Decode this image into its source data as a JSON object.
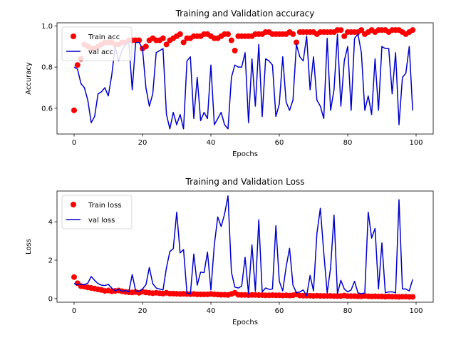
{
  "chart_data": [
    {
      "type": "scatter+line",
      "title": "Training and Validation accuracy",
      "xlabel": "Epochs",
      "ylabel": "Accuracy",
      "xlim": [
        -5,
        105
      ],
      "ylim": [
        0.475,
        1.015
      ],
      "xticks": [
        0,
        20,
        40,
        60,
        80,
        100
      ],
      "yticks": [
        0.6,
        0.8,
        1.0
      ],
      "ytick_labels": [
        "0.6",
        "0.8",
        "1.0"
      ],
      "legend": {
        "placement": "upper-left"
      },
      "series": [
        {
          "name": "Train acc",
          "kind": "scatter",
          "color": "#ff0000",
          "values": [
            0.59,
            0.81,
            0.84,
            0.91,
            0.9,
            0.89,
            0.89,
            0.9,
            0.91,
            0.92,
            0.92,
            0.92,
            0.91,
            0.91,
            0.92,
            0.92,
            0.93,
            0.93,
            0.93,
            0.93,
            0.89,
            0.9,
            0.93,
            0.94,
            0.93,
            0.93,
            0.94,
            0.91,
            0.93,
            0.94,
            0.95,
            0.96,
            0.92,
            0.94,
            0.94,
            0.95,
            0.95,
            0.95,
            0.96,
            0.96,
            0.95,
            0.94,
            0.94,
            0.95,
            0.96,
            0.96,
            0.93,
            0.88,
            0.95,
            0.95,
            0.95,
            0.95,
            0.95,
            0.96,
            0.96,
            0.96,
            0.97,
            0.97,
            0.96,
            0.96,
            0.96,
            0.96,
            0.96,
            0.97,
            0.96,
            0.92,
            0.97,
            0.97,
            0.97,
            0.97,
            0.97,
            0.96,
            0.97,
            0.97,
            0.97,
            0.97,
            0.97,
            0.98,
            0.98,
            0.95,
            0.97,
            0.97,
            0.97,
            0.97,
            0.98,
            0.96,
            0.97,
            0.98,
            0.97,
            0.98,
            0.98,
            0.98,
            0.97,
            0.98,
            0.98,
            0.98,
            0.97,
            0.96,
            0.97,
            0.98
          ]
        },
        {
          "name": "val acc",
          "kind": "line",
          "color": "#0000cc",
          "values": [
            0.8,
            0.79,
            0.72,
            0.7,
            0.64,
            0.53,
            0.56,
            0.67,
            0.68,
            0.7,
            0.66,
            0.76,
            0.9,
            0.83,
            0.88,
            0.91,
            0.92,
            0.69,
            0.92,
            0.92,
            0.89,
            0.7,
            0.61,
            0.67,
            0.87,
            0.88,
            0.89,
            0.57,
            0.5,
            0.58,
            0.52,
            0.57,
            0.5,
            0.83,
            0.85,
            0.55,
            0.75,
            0.54,
            0.58,
            0.55,
            0.81,
            0.52,
            0.55,
            0.58,
            0.52,
            0.5,
            0.75,
            0.81,
            0.8,
            0.8,
            0.87,
            0.53,
            0.84,
            0.61,
            0.91,
            0.56,
            0.84,
            0.83,
            0.81,
            0.56,
            0.62,
            0.85,
            0.63,
            0.59,
            0.64,
            0.91,
            0.85,
            0.83,
            0.95,
            0.69,
            0.85,
            0.64,
            0.61,
            0.55,
            0.94,
            0.59,
            0.69,
            0.96,
            0.61,
            0.83,
            0.9,
            0.59,
            0.94,
            0.96,
            0.87,
            0.59,
            0.66,
            0.57,
            0.84,
            0.59,
            0.9,
            0.89,
            0.89,
            0.67,
            0.87,
            0.52,
            0.75,
            0.77,
            0.9,
            0.59
          ]
        }
      ]
    },
    {
      "type": "scatter+line",
      "title": "Training and Validation Loss",
      "xlabel": "Epochs",
      "ylabel": "Loss",
      "xlim": [
        -5,
        105
      ],
      "ylim": [
        -0.19,
        5.6
      ],
      "xticks": [
        0,
        20,
        40,
        60,
        80,
        100
      ],
      "yticks": [
        0,
        2,
        4
      ],
      "ytick_labels": [
        "0",
        "2",
        "4"
      ],
      "legend": {
        "placement": "upper-left"
      },
      "series": [
        {
          "name": "Train loss",
          "kind": "scatter",
          "color": "#ff0000",
          "values": [
            1.12,
            0.8,
            0.65,
            0.62,
            0.58,
            0.55,
            0.52,
            0.48,
            0.45,
            0.4,
            0.42,
            0.38,
            0.4,
            0.42,
            0.38,
            0.35,
            0.33,
            0.32,
            0.34,
            0.3,
            0.36,
            0.32,
            0.3,
            0.28,
            0.3,
            0.28,
            0.26,
            0.3,
            0.26,
            0.26,
            0.25,
            0.24,
            0.25,
            0.24,
            0.23,
            0.24,
            0.22,
            0.22,
            0.22,
            0.22,
            0.24,
            0.22,
            0.21,
            0.2,
            0.2,
            0.19,
            0.24,
            0.3,
            0.2,
            0.19,
            0.19,
            0.18,
            0.19,
            0.19,
            0.18,
            0.18,
            0.17,
            0.17,
            0.18,
            0.17,
            0.17,
            0.16,
            0.17,
            0.16,
            0.17,
            0.22,
            0.16,
            0.15,
            0.15,
            0.15,
            0.14,
            0.15,
            0.14,
            0.14,
            0.14,
            0.14,
            0.13,
            0.13,
            0.13,
            0.16,
            0.13,
            0.13,
            0.13,
            0.12,
            0.12,
            0.14,
            0.12,
            0.11,
            0.12,
            0.11,
            0.11,
            0.1,
            0.11,
            0.1,
            0.1,
            0.09,
            0.1,
            0.1,
            0.09,
            0.09
          ]
        },
        {
          "name": "val loss",
          "kind": "line",
          "color": "#0000cc",
          "values": [
            0.78,
            0.72,
            0.75,
            0.72,
            0.8,
            1.15,
            0.95,
            0.78,
            0.7,
            0.68,
            0.74,
            0.55,
            0.4,
            0.48,
            0.38,
            0.42,
            0.35,
            1.25,
            0.4,
            0.38,
            0.5,
            0.72,
            1.62,
            0.78,
            0.55,
            0.5,
            0.45,
            1.6,
            2.45,
            2.6,
            4.5,
            2.38,
            2.55,
            0.28,
            0.25,
            2.32,
            0.7,
            1.38,
            1.35,
            2.42,
            0.45,
            2.8,
            4.25,
            3.75,
            4.4,
            5.35,
            1.38,
            0.6,
            0.55,
            0.65,
            2.15,
            0.25,
            2.8,
            0.38,
            4.1,
            0.35,
            0.55,
            0.48,
            0.5,
            3.8,
            0.9,
            0.4,
            1.65,
            2.62,
            0.7,
            0.3,
            0.35,
            0.45,
            0.15,
            1.2,
            0.4,
            3.4,
            4.7,
            2.4,
            0.3,
            1.6,
            4.35,
            0.25,
            0.95,
            0.5,
            0.35,
            0.45,
            0.9,
            0.3,
            0.25,
            0.3,
            4.5,
            3.15,
            3.65,
            0.5,
            2.9,
            0.3,
            0.35,
            0.35,
            0.3,
            5.15,
            0.5,
            0.5,
            0.4,
            1.0
          ]
        }
      ]
    }
  ]
}
